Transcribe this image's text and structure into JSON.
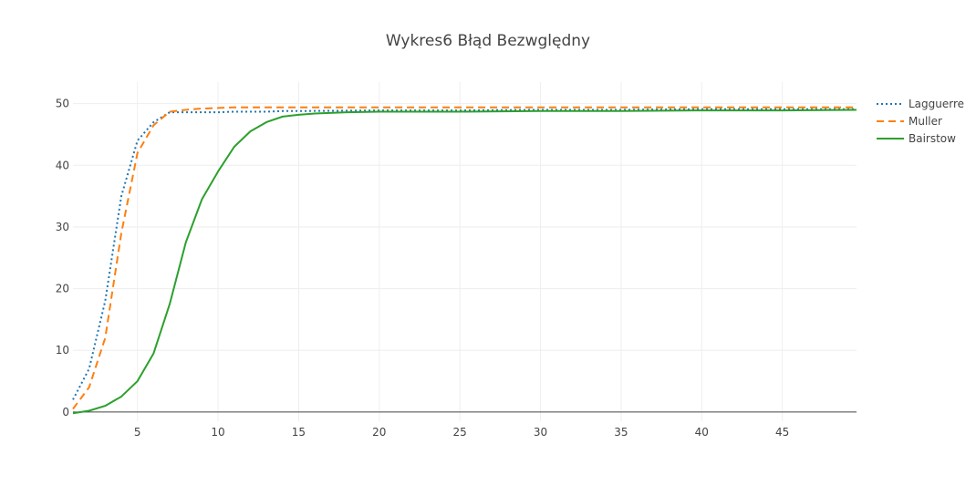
{
  "chart_data": {
    "type": "line",
    "title": "Wykres6  Błąd Bezwględny",
    "xlabel": "",
    "ylabel": "",
    "xlim": [
      1,
      49.6
    ],
    "ylim": [
      -1.5,
      53.5
    ],
    "xticks": [
      5,
      10,
      15,
      20,
      25,
      30,
      35,
      40,
      45
    ],
    "yticks": [
      0,
      10,
      20,
      30,
      40,
      50
    ],
    "grid": true,
    "legend_position": "top-right",
    "series": [
      {
        "name": "Lagguerre",
        "color": "#1f77b4",
        "dash": "dotted",
        "x": [
          1,
          2,
          3,
          4,
          5,
          6,
          7,
          8,
          9,
          10,
          11,
          12,
          13,
          14,
          15,
          20,
          25,
          30,
          35,
          40,
          45,
          49.6
        ],
        "y": [
          2,
          7,
          18,
          35,
          44,
          47,
          48.6,
          48.6,
          48.6,
          48.6,
          48.7,
          48.7,
          48.7,
          48.8,
          48.8,
          48.9,
          48.9,
          49.0,
          49.0,
          49.1,
          49.1,
          49.1
        ]
      },
      {
        "name": "Muller",
        "color": "#ff7f0e",
        "dash": "dashed",
        "x": [
          1,
          2,
          3,
          4,
          5,
          6,
          7,
          8,
          9,
          10,
          11,
          12,
          13,
          14,
          15,
          20,
          25,
          30,
          35,
          40,
          45,
          49.6
        ],
        "y": [
          0.5,
          4,
          12,
          29,
          42,
          46.5,
          48.7,
          49.0,
          49.2,
          49.3,
          49.4,
          49.4,
          49.4,
          49.4,
          49.4,
          49.4,
          49.4,
          49.4,
          49.4,
          49.4,
          49.4,
          49.4
        ]
      },
      {
        "name": "Bairstow",
        "color": "#2ca02c",
        "dash": "solid",
        "x": [
          1,
          2,
          3,
          4,
          5,
          6,
          7,
          8,
          9,
          10,
          11,
          12,
          13,
          14,
          15,
          16,
          18,
          20,
          25,
          30,
          35,
          40,
          45,
          49.6
        ],
        "y": [
          -0.2,
          0.2,
          1.0,
          2.5,
          5,
          9.5,
          17.5,
          27.5,
          34.5,
          39,
          43,
          45.5,
          47,
          47.9,
          48.2,
          48.4,
          48.6,
          48.7,
          48.7,
          48.8,
          48.8,
          48.9,
          48.9,
          49.0
        ]
      }
    ]
  }
}
